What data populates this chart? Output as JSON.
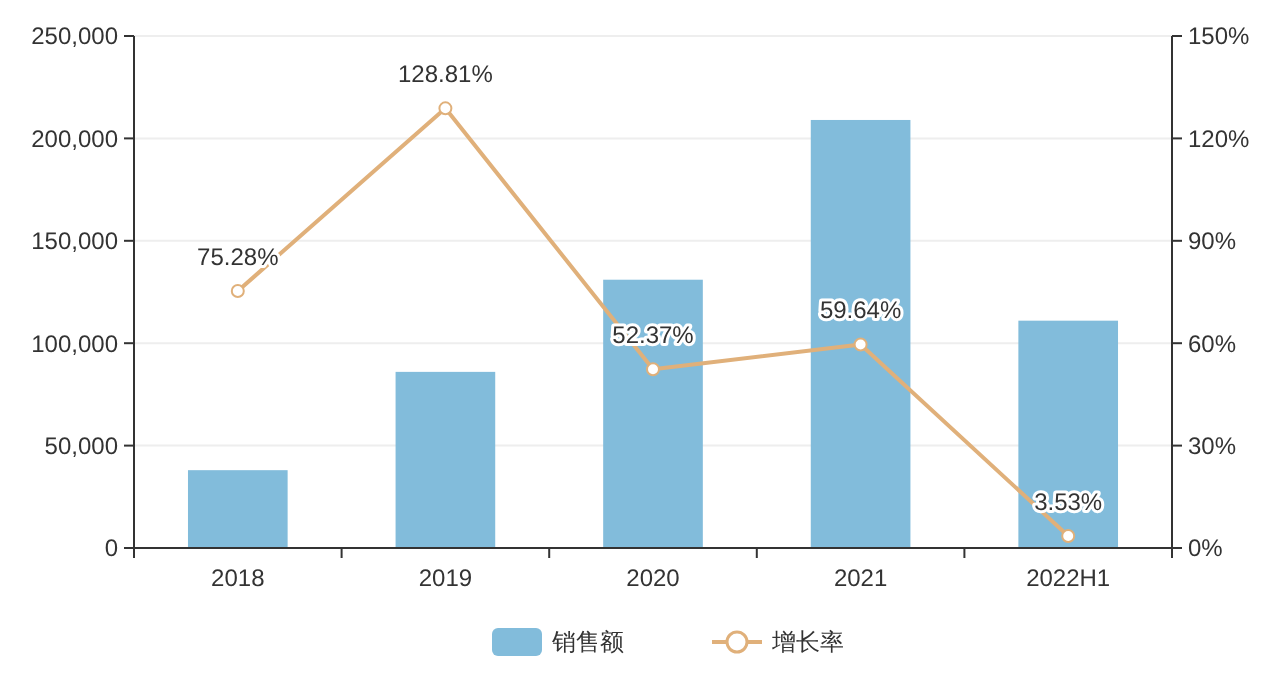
{
  "chart_data": {
    "type": "bar",
    "categories": [
      "2018",
      "2019",
      "2020",
      "2021",
      "2022H1"
    ],
    "series": [
      {
        "name": "销售额",
        "color": "#82bcdb",
        "values": [
          38000,
          86000,
          131000,
          209000,
          111000
        ]
      },
      {
        "name": "增长率",
        "type": "line",
        "axis": "y2",
        "color": "#e0b07a",
        "marker": "circle",
        "values": [
          75.28,
          128.81,
          52.37,
          59.64,
          3.53
        ],
        "value_labels": [
          "75.28%",
          "128.81%",
          "52.37%",
          "59.64%",
          "3.53%"
        ]
      }
    ],
    "ylim": [
      0,
      250000
    ],
    "yticks": [
      {
        "value": 0,
        "label": "0"
      },
      {
        "value": 50000,
        "label": "50,000"
      },
      {
        "value": 100000,
        "label": "100,000"
      },
      {
        "value": 150000,
        "label": "150,000"
      },
      {
        "value": 200000,
        "label": "200,000"
      },
      {
        "value": 250000,
        "label": "250,000"
      }
    ],
    "y2lim": [
      0,
      150
    ],
    "y2ticks": [
      {
        "value": 0,
        "label": "0%"
      },
      {
        "value": 30,
        "label": "30%"
      },
      {
        "value": 60,
        "label": "60%"
      },
      {
        "value": 90,
        "label": "90%"
      },
      {
        "value": 120,
        "label": "120%"
      },
      {
        "value": 150,
        "label": "150%"
      }
    ],
    "grid": "y",
    "legend": "bottom"
  }
}
